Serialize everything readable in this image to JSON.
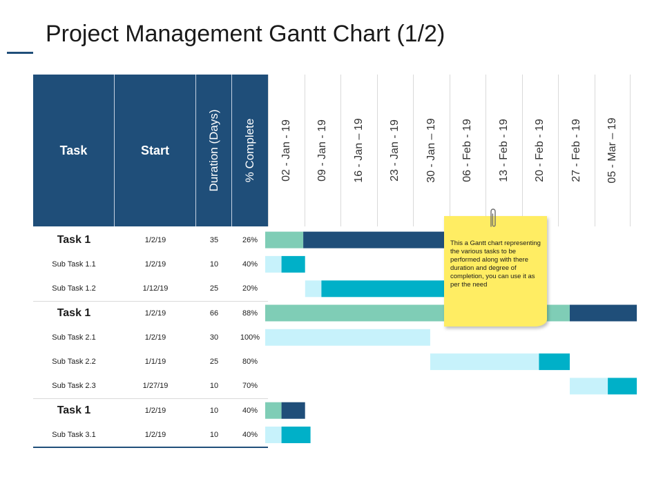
{
  "title": "Project Management Gantt Chart (1/2)",
  "table": {
    "headers": {
      "task": "Task",
      "start": "Start",
      "duration": "Duration (Days)",
      "complete": "% Complete"
    },
    "rows": [
      {
        "task": "Task 1",
        "start": "1/2/19",
        "duration": "35",
        "complete": "26%",
        "level": "task"
      },
      {
        "task": "Sub Task  1.1",
        "start": "1/2/19",
        "duration": "10",
        "complete": "40%",
        "level": "sub"
      },
      {
        "task": "Sub Task  1.2",
        "start": "1/12/19",
        "duration": "25",
        "complete": "20%",
        "level": "sub"
      },
      {
        "task": "Task 1",
        "start": "1/2/19",
        "duration": "66",
        "complete": "88%",
        "level": "task"
      },
      {
        "task": "Sub Task  2.1",
        "start": "1/2/19",
        "duration": "30",
        "complete": "100%",
        "level": "sub"
      },
      {
        "task": "Sub Task  2.2",
        "start": "1/1/19",
        "duration": "25",
        "complete": "80%",
        "level": "sub"
      },
      {
        "task": "Sub Task  2.3",
        "start": "1/27/19",
        "duration": "10",
        "complete": "70%",
        "level": "sub"
      },
      {
        "task": "Task 1",
        "start": "1/2/19",
        "duration": "10",
        "complete": "40%",
        "level": "task"
      },
      {
        "task": "Sub Task  3.1",
        "start": "1/2/19",
        "duration": "10",
        "complete": "40%",
        "level": "sub"
      }
    ]
  },
  "timeline": {
    "dates": [
      "02 - Jan - 19",
      "09 - Jan - 19",
      "16 - Jan – 19",
      "23 - Jan - 19",
      "30 - Jan – 19",
      "06 - Feb - 19",
      "13 - Feb - 19",
      "20 - Feb - 19",
      "27 - Feb - 19",
      "05 - Mar – 19"
    ]
  },
  "chart_data": {
    "type": "gantt",
    "title": "Project Management Gantt Chart (1/2)",
    "time_unit": "weeks from 02 - Jan - 19",
    "bars": [
      {
        "row": 0,
        "start": 0.0,
        "segments": [
          {
            "length": 1.05,
            "color": "#7fcdb6"
          },
          {
            "length": 3.95,
            "color": "#1f4e79"
          }
        ]
      },
      {
        "row": 1,
        "start": 0.0,
        "segments": [
          {
            "length": 0.45,
            "color": "#c7f2fb"
          },
          {
            "length": 0.65,
            "color": "#00b0c8"
          }
        ]
      },
      {
        "row": 2,
        "start": 1.1,
        "segments": [
          {
            "length": 0.45,
            "color": "#c7f2fb"
          },
          {
            "length": 3.45,
            "color": "#00b0c8"
          }
        ]
      },
      {
        "row": 3,
        "start": 0.0,
        "segments": [
          {
            "length": 8.4,
            "color": "#7fcdb6"
          },
          {
            "length": 1.85,
            "color": "#1f4e79"
          }
        ]
      },
      {
        "row": 4,
        "start": 0.0,
        "segments": [
          {
            "length": 4.55,
            "color": "#c7f2fb"
          }
        ]
      },
      {
        "row": 5,
        "start": 4.55,
        "segments": [
          {
            "length": 3.0,
            "color": "#c7f2fb"
          },
          {
            "length": 0.85,
            "color": "#00b0c8"
          }
        ]
      },
      {
        "row": 6,
        "start": 8.4,
        "segments": [
          {
            "length": 1.05,
            "color": "#c7f2fb"
          },
          {
            "length": 0.8,
            "color": "#00b0c8"
          }
        ]
      },
      {
        "row": 7,
        "start": 0.0,
        "segments": [
          {
            "length": 0.45,
            "color": "#7fcdb6"
          },
          {
            "length": 0.65,
            "color": "#1f4e79"
          }
        ]
      },
      {
        "row": 8,
        "start": 0.0,
        "segments": [
          {
            "length": 0.45,
            "color": "#c7f2fb"
          },
          {
            "length": 0.8,
            "color": "#00b0c8"
          }
        ]
      }
    ]
  },
  "note": {
    "text": "This a Gantt chart representing the various tasks to be performed along with there duration and degree of completion, you can use it as per the need"
  },
  "colors": {
    "header_blue": "#1f4e79",
    "teal_light": "#c7f2fb",
    "teal": "#00b0c8",
    "green": "#7fcdb6",
    "note_yellow": "#ffed63"
  }
}
